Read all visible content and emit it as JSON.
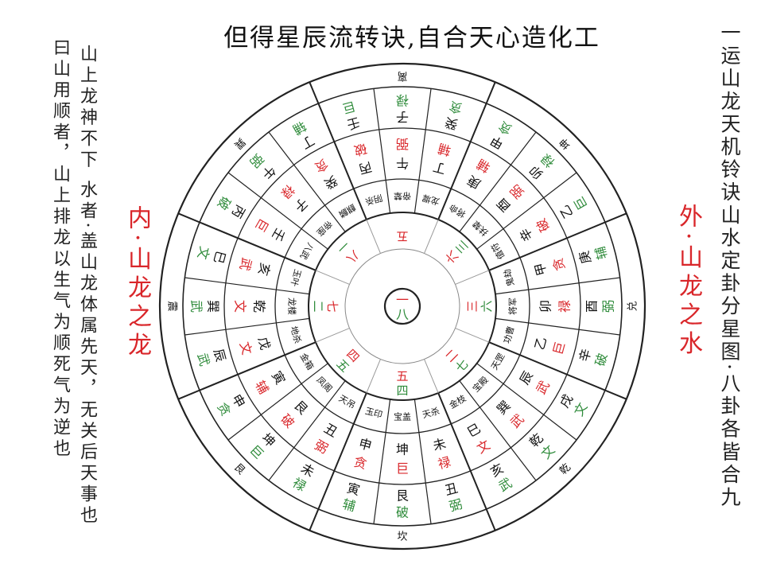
{
  "title": "但得星辰流转诀,自合天心造化工",
  "left_text": {
    "column_1": "山上龙神不下 水者·盖山龙体属先天，无关后天事也",
    "column_2": "曰山用顺者，山上排龙以生气为顺死气为逆也"
  },
  "right_text": "一运山龙天机铃诀山水定卦分星图·八卦各皆合九",
  "inner_label": "内·山龙之龙",
  "outer_label": "外·山龙之水",
  "colors": {
    "red": "#d9262a",
    "green": "#2e8b3a",
    "line": "#222222"
  },
  "diagram": {
    "center": {
      "red": "一",
      "green": "八"
    },
    "trigrams": [
      "坎",
      "艮",
      "震",
      "巽",
      "离",
      "坤",
      "兑",
      "乾"
    ],
    "numbers": [
      {
        "red": "五",
        "green": "四"
      },
      {
        "red": "四",
        "green": "五"
      },
      {
        "red": "七",
        "green": "二"
      },
      {
        "red": "八",
        "green": "一"
      },
      {
        "red": "五",
        "green": ""
      },
      {
        "red": "六",
        "green": "三"
      },
      {
        "red": "三",
        "green": "六"
      },
      {
        "red": "二",
        "green": "七"
      }
    ],
    "sectors": [
      {
        "star": "宝盖",
        "inner": "坤巨",
        "outer": "艮破"
      },
      {
        "star": "玉印",
        "inner": "申贪",
        "outer": "寅辅"
      },
      {
        "star": "天吊",
        "inner": "丑弼",
        "outer": "未禄"
      },
      {
        "star": "凤阁",
        "inner": "艮破",
        "outer": "坤巨"
      },
      {
        "star": "金箱",
        "inner": "寅辅",
        "outer": "申贪"
      },
      {
        "star": "地杀",
        "inner": "戊文",
        "outer": "辰武"
      },
      {
        "star": "龙楼",
        "inner": "乾文",
        "outer": "巽武"
      },
      {
        "star": "玉叶",
        "inner": "亥武",
        "outer": "巳文"
      },
      {
        "star": "八武",
        "inner": "壬巨",
        "outer": "丙破"
      },
      {
        "star": "帝座",
        "inner": "子禄",
        "outer": "午弼"
      },
      {
        "star": "麒麟",
        "inner": "癸贪",
        "outer": "丁辅"
      },
      {
        "star": "阴杀",
        "inner": "丙破",
        "outer": "壬巨"
      },
      {
        "star": "帝辇",
        "inner": "午弼",
        "outer": "子禄"
      },
      {
        "star": "龙墀",
        "inner": "丁辅",
        "outer": "癸贪"
      },
      {
        "star": "将命",
        "inner": "庚辅",
        "outer": "甲贪"
      },
      {
        "star": "扶辇",
        "inner": "酉弼",
        "outer": "卯禄"
      },
      {
        "star": "值符",
        "inner": "辛破",
        "outer": "乙巨"
      },
      {
        "star": "鬼劫",
        "inner": "甲贪",
        "outer": "庚辅"
      },
      {
        "star": "将军",
        "inner": "卯禄",
        "outer": "酉弼"
      },
      {
        "star": "功曹",
        "inner": "乙巨",
        "outer": "辛破"
      },
      {
        "star": "天罡",
        "inner": "辰武",
        "outer": "戌文"
      },
      {
        "star": "宝殿",
        "inner": "巽武",
        "outer": "乾文"
      },
      {
        "star": "金枝",
        "inner": "巳文",
        "outer": "亥武"
      },
      {
        "star": "天杀",
        "inner": "未禄",
        "outer": "丑弼"
      }
    ]
  }
}
